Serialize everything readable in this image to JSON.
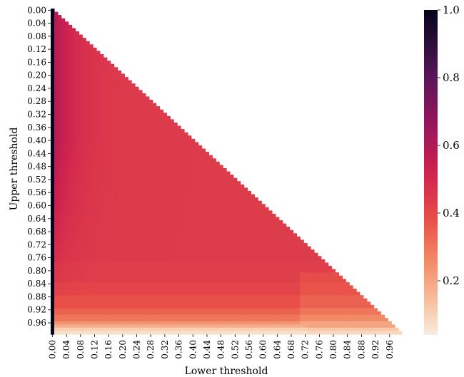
{
  "chart_data": {
    "type": "heatmap",
    "title": "",
    "xlabel": "Lower threshold",
    "ylabel": "Upper threshold",
    "mask": "lower-triangle only (cells where upper threshold > lower threshold are drawn)",
    "grid_step": 0.01,
    "grid_range": [
      0.0,
      0.99
    ],
    "x_tick_labels": [
      "0.00",
      "0.04",
      "0.08",
      "0.12",
      "0.16",
      "0.20",
      "0.24",
      "0.28",
      "0.32",
      "0.36",
      "0.40",
      "0.44",
      "0.48",
      "0.52",
      "0.56",
      "0.60",
      "0.64",
      "0.68",
      "0.72",
      "0.76",
      "0.80",
      "0.84",
      "0.88",
      "0.92",
      "0.96"
    ],
    "y_tick_labels": [
      "0.00",
      "0.04",
      "0.08",
      "0.12",
      "0.16",
      "0.20",
      "0.24",
      "0.28",
      "0.32",
      "0.36",
      "0.40",
      "0.44",
      "0.48",
      "0.52",
      "0.56",
      "0.60",
      "0.64",
      "0.68",
      "0.72",
      "0.76",
      "0.80",
      "0.84",
      "0.88",
      "0.92",
      "0.96"
    ],
    "colormap": "rocket_r",
    "colorbar": {
      "range": [
        0.04,
        1.0
      ],
      "ticks": [
        "0.2",
        "0.4",
        "0.6",
        "0.8",
        "1.0"
      ],
      "tick_values": [
        0.2,
        0.4,
        0.6,
        0.8,
        1.0
      ]
    },
    "approx_values": {
      "upper_0.99_row": 0.07,
      "upper_0.98_row": 0.12,
      "upper_0.96_row": 0.24,
      "upper_0.92_row": 0.33,
      "upper_0.85_row": 0.4,
      "typical_interior": 0.45,
      "interior_near_left_mid": 0.55,
      "lower_0.00_column": 1.0,
      "lower_0.01_column_mid": 0.62
    }
  }
}
